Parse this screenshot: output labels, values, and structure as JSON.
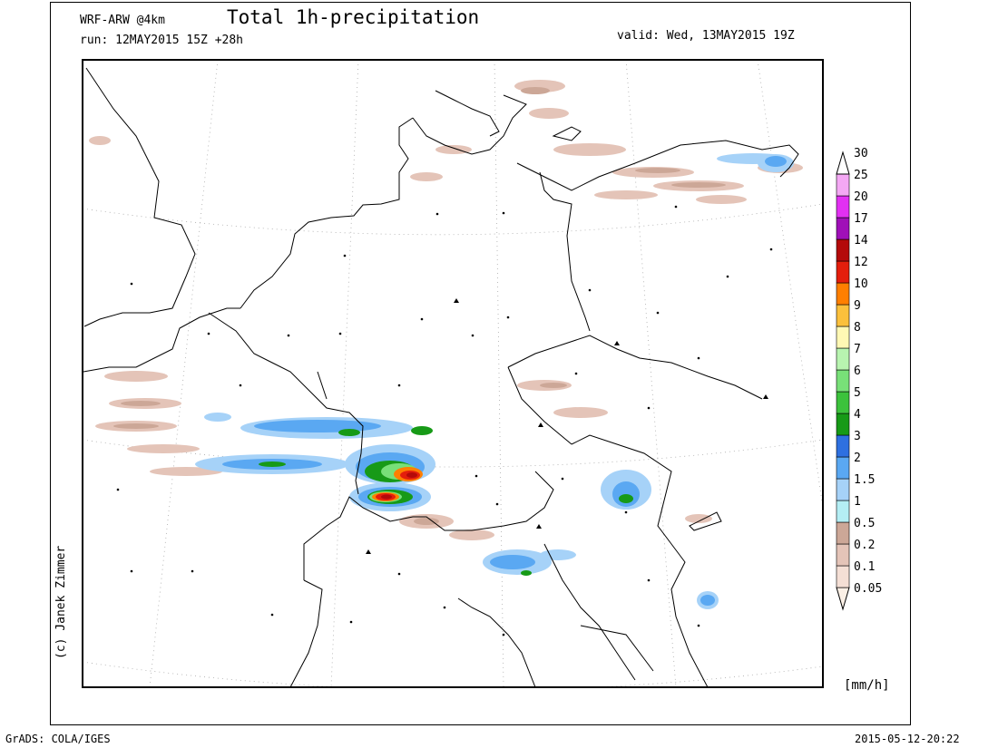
{
  "header": {
    "model": "WRF-ARW @4km",
    "run": "run: 12MAY2015 15Z +28h",
    "title": "Total 1h-precipitation",
    "valid": "valid: Wed, 13MAY2015 19Z"
  },
  "credit": "(c) Janek Zimmer",
  "footer": {
    "software": "GrADS: COLA/IGES",
    "timestamp": "2015-05-12-20:22"
  },
  "legend": {
    "unit": "[mm/h]",
    "levels": [
      {
        "label": "0.05",
        "color": "#fbf0e6"
      },
      {
        "label": "0.1",
        "color": "#f4dfd5"
      },
      {
        "label": "0.2",
        "color": "#e4c4b8"
      },
      {
        "label": "0.5",
        "color": "#cca797"
      },
      {
        "label": "1",
        "color": "#b4eef4"
      },
      {
        "label": "1.5",
        "color": "#a6d2f8"
      },
      {
        "label": "2",
        "color": "#5aa8f2"
      },
      {
        "label": "3",
        "color": "#2e70e0"
      },
      {
        "label": "4",
        "color": "#179a17"
      },
      {
        "label": "5",
        "color": "#3cc23c"
      },
      {
        "label": "6",
        "color": "#78e078"
      },
      {
        "label": "7",
        "color": "#b8f4b0"
      },
      {
        "label": "8",
        "color": "#fff8b4"
      },
      {
        "label": "9",
        "color": "#fbc03c"
      },
      {
        "label": "10",
        "color": "#ff7f00"
      },
      {
        "label": "12",
        "color": "#e41e0c"
      },
      {
        "label": "14",
        "color": "#b40a0a"
      },
      {
        "label": "17",
        "color": "#a010b8"
      },
      {
        "label": "20",
        "color": "#e230f2"
      },
      {
        "label": "25",
        "color": "#f4a8f4"
      },
      {
        "label": "30",
        "color": "#ffffff"
      }
    ]
  }
}
